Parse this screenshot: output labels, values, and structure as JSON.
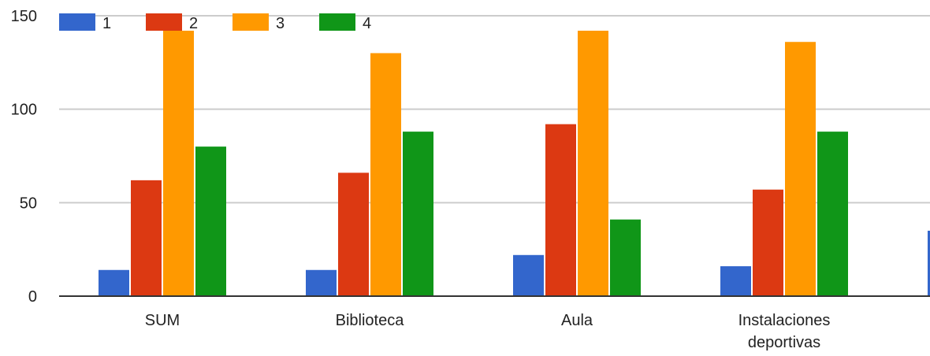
{
  "chart_data": {
    "type": "bar",
    "categories": [
      [
        "SUM"
      ],
      [
        "Biblioteca"
      ],
      [
        "Aula"
      ],
      [
        "Instalaciones",
        "deportivas"
      ]
    ],
    "series": [
      {
        "name": "1",
        "color": "#3366cc",
        "values": [
          14,
          14,
          22,
          16
        ]
      },
      {
        "name": "2",
        "color": "#dc3912",
        "values": [
          62,
          66,
          92,
          57
        ]
      },
      {
        "name": "3",
        "color": "#ff9900",
        "values": [
          142,
          130,
          142,
          136
        ]
      },
      {
        "name": "4",
        "color": "#109618",
        "values": [
          80,
          88,
          41,
          88
        ]
      }
    ],
    "partial_bar": {
      "series": "1",
      "value": 35
    },
    "y_ticks": [
      0,
      50,
      100,
      150
    ],
    "ylim": [
      0,
      150
    ],
    "grid": true,
    "legend_position": "top-left",
    "title": "",
    "xlabel": "",
    "ylabel": ""
  }
}
